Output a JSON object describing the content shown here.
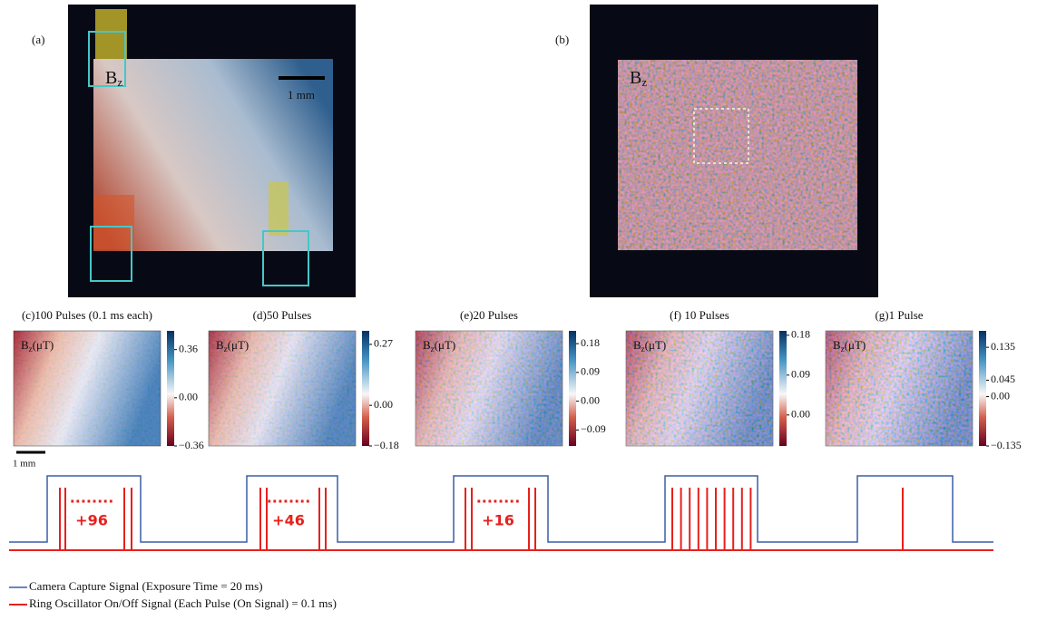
{
  "panels": [
    {
      "label": "(a)",
      "field": "B",
      "sub": "z",
      "scale": "1 mm"
    },
    {
      "label": "(b)",
      "field": "B",
      "sub": "z"
    }
  ],
  "heatmaps": [
    {
      "title": "(c)100 Pulses (0.1 ms each)",
      "clim": [
        -0.36,
        0.5
      ],
      "ticks": [
        0.36,
        {
          "value": 0,
          "label": "0.00"
        },
        {
          "value": -0.36,
          "label": "−0.36"
        }
      ]
    },
    {
      "title": "(d)50 Pulses",
      "clim": [
        -0.18,
        0.33
      ],
      "ticks": [
        0.27,
        {
          "value": 0,
          "label": "0.00"
        },
        {
          "value": -0.18,
          "label": "−0.18"
        }
      ]
    },
    {
      "title": "(e)20 Pulses",
      "clim": [
        -0.14,
        0.22
      ],
      "ticks": [
        0.18,
        0.09,
        {
          "value": 0,
          "label": "0.00"
        },
        {
          "value": -0.09,
          "label": "−0.09"
        }
      ]
    },
    {
      "title": "(f) 10 Pulses",
      "clim": [
        -0.07,
        0.19
      ],
      "ticks": [
        0.18,
        0.09,
        {
          "value": 0,
          "label": "0.00"
        }
      ]
    },
    {
      "title": "(g)1 Pulse",
      "clim": [
        -0.135,
        0.18
      ],
      "ticks": [
        0.135,
        0.045,
        {
          "value": 0,
          "label": "0.00"
        },
        {
          "value": -0.135,
          "label": "−0.135"
        }
      ]
    }
  ],
  "heatmap_label": {
    "field": "B",
    "sub": "z",
    "unit": "(μT)"
  },
  "scale_bar": "1 mm",
  "annotations": [
    {
      "dots": "........",
      "count": "+96"
    },
    {
      "dots": "........",
      "count": "+46"
    },
    {
      "dots": "........",
      "count": "+16"
    }
  ],
  "legend": [
    {
      "name": "Camera Capture Signal (Exposure Time = 20 ms)",
      "color": "#3a5fa8"
    },
    {
      "name": "Ring Oscillator On/Off Signal (Each Pulse (On Signal) = 0.1 ms)",
      "color": "#e8201c"
    }
  ]
}
